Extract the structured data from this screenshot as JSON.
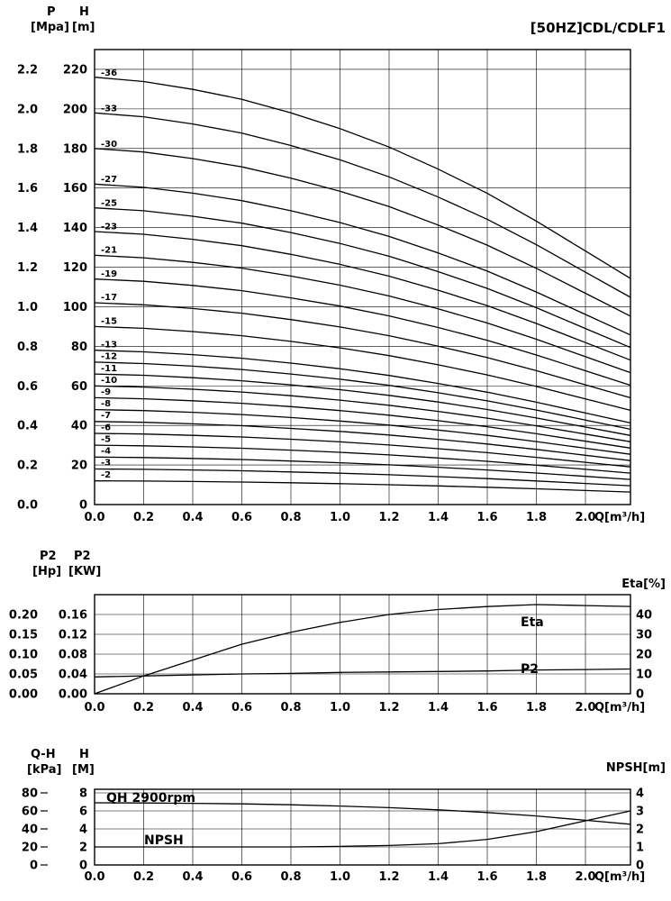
{
  "title": "[50HZ]CDL/CDLF1",
  "chart_data": [
    {
      "id": "head-curves",
      "type": "line",
      "title": "[50HZ]CDL/CDLF1",
      "xlabel": "Q[m³/h]",
      "xticks": [
        "0.0",
        "0.2",
        "0.4",
        "0.6",
        "0.8",
        "1.0",
        "1.2",
        "1.4",
        "1.6",
        "1.8",
        "2.0"
      ],
      "x": [
        0,
        0.2,
        0.4,
        0.6,
        0.8,
        1.0,
        1.2,
        1.4,
        1.6,
        1.8,
        2.0
      ],
      "xlim": [
        0,
        2.0
      ],
      "axes_left": [
        {
          "title": "P",
          "unit": "[Mpa]",
          "ticks": [
            "2.2",
            "2.0",
            "1.8",
            "1.6",
            "1.4",
            "1.2",
            "1.0",
            "0.8",
            "0.6",
            "0.4",
            "0.2",
            "0.0"
          ]
        },
        {
          "title": "H",
          "unit": "[m]",
          "ticks": [
            "220",
            "200",
            "180",
            "160",
            "140",
            "120",
            "100",
            "80",
            "60",
            "40",
            "20",
            "0"
          ]
        }
      ],
      "ylim_m": [
        0,
        230
      ],
      "grid": true,
      "stage_series": {
        "label_prefix": "-",
        "stages": [
          36,
          33,
          30,
          27,
          25,
          23,
          21,
          19,
          17,
          15,
          13,
          12,
          11,
          10,
          9,
          8,
          7,
          6,
          5,
          4,
          3,
          2
        ],
        "per_stage_head_m": [
          6.0,
          5.94,
          5.83,
          5.69,
          5.5,
          5.28,
          5.02,
          4.71,
          4.37,
          3.98,
          3.56
        ]
      }
    },
    {
      "id": "power-efficiency",
      "type": "line",
      "xlabel": "Q[m³/h]",
      "xticks": [
        "0.0",
        "0.2",
        "0.4",
        "0.6",
        "0.8",
        "1.0",
        "1.2",
        "1.4",
        "1.6",
        "1.8",
        "2.0"
      ],
      "x": [
        0,
        0.2,
        0.4,
        0.6,
        0.8,
        1.0,
        1.2,
        1.4,
        1.6,
        1.8,
        2.0
      ],
      "xlim": [
        0,
        2.0
      ],
      "axes_left": [
        {
          "title": "P2",
          "unit": "[Hp]",
          "ticks": [
            "0.20",
            "0.15",
            "0.10",
            "0.05",
            "0.00"
          ]
        },
        {
          "title": "P2",
          "unit": "[KW]",
          "ticks": [
            "0.16",
            "0.12",
            "0.08",
            "0.04",
            "0.00"
          ]
        }
      ],
      "axis_right": {
        "title": "Eta[%]",
        "ticks": [
          "40",
          "30",
          "20",
          "10",
          "0"
        ],
        "lim": [
          0,
          50
        ]
      },
      "ylim_kw": [
        0,
        0.2
      ],
      "grid": true,
      "series": [
        {
          "name": "Eta",
          "axis": "right",
          "values": [
            0,
            9,
            17,
            25,
            31,
            36,
            40,
            42.5,
            44,
            45,
            44.5
          ]
        },
        {
          "name": "P2",
          "axis": "left_kw",
          "values": [
            0.034,
            0.036,
            0.038,
            0.04,
            0.041,
            0.043,
            0.044,
            0.045,
            0.046,
            0.048,
            0.049
          ]
        }
      ]
    },
    {
      "id": "qh-npsh",
      "type": "line",
      "xlabel": "Q[m³/h]",
      "xticks": [
        "0.0",
        "0.2",
        "0.4",
        "0.6",
        "0.8",
        "1.0",
        "1.2",
        "1.4",
        "1.6",
        "1.8",
        "2.0"
      ],
      "x": [
        0,
        0.2,
        0.4,
        0.6,
        0.8,
        1.0,
        1.2,
        1.4,
        1.6,
        1.8,
        2.0
      ],
      "xlim": [
        0,
        2.0
      ],
      "axes_left": [
        {
          "title": "Q-H",
          "unit": "[kPa]",
          "ticks": [
            "80",
            "60",
            "40",
            "20",
            "0"
          ]
        },
        {
          "title": "H",
          "unit": "[M]",
          "ticks": [
            "8",
            "6",
            "4",
            "2",
            "0"
          ]
        }
      ],
      "axis_right": {
        "title": "NPSH[m]",
        "ticks": [
          "4",
          "3",
          "2",
          "1",
          "0"
        ],
        "lim": [
          0,
          4.2
        ]
      },
      "ylim_m": [
        0,
        8.4
      ],
      "grid": true,
      "series": [
        {
          "name": "QH 2900rpm",
          "axis": "left_m",
          "values": [
            6.9,
            6.88,
            6.84,
            6.78,
            6.68,
            6.54,
            6.36,
            6.12,
            5.82,
            5.44,
            4.96
          ]
        },
        {
          "name": "NPSH",
          "axis": "right",
          "values": [
            1,
            1,
            1,
            1,
            1,
            1.03,
            1.08,
            1.18,
            1.42,
            1.85,
            2.45
          ]
        }
      ]
    }
  ]
}
